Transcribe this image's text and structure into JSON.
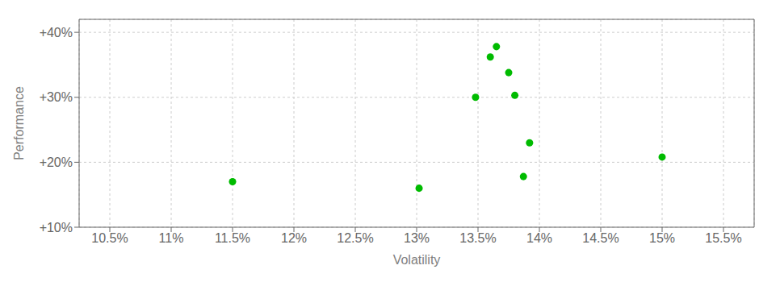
{
  "chart_data": {
    "type": "scatter",
    "xlabel": "Volatility",
    "ylabel": "Performance",
    "x": [
      11.5,
      13.02,
      13.48,
      13.6,
      13.65,
      13.75,
      13.8,
      13.92,
      13.87,
      15.0
    ],
    "values": [
      17.0,
      16.0,
      30.0,
      36.2,
      37.8,
      33.8,
      30.3,
      23.0,
      17.8,
      20.8
    ],
    "color": "#00bb00",
    "marker": "circle",
    "xlim": [
      10.25,
      15.75
    ],
    "ylim": [
      10.0,
      42.0
    ],
    "xticks": [
      {
        "value": 10.5,
        "label": "10.5%"
      },
      {
        "value": 11.0,
        "label": "11%"
      },
      {
        "value": 11.5,
        "label": "11.5%"
      },
      {
        "value": 12.0,
        "label": "12%"
      },
      {
        "value": 12.5,
        "label": "12.5%"
      },
      {
        "value": 13.0,
        "label": "13%"
      },
      {
        "value": 13.5,
        "label": "13.5%"
      },
      {
        "value": 14.0,
        "label": "14%"
      },
      {
        "value": 14.5,
        "label": "14.5%"
      },
      {
        "value": 15.0,
        "label": "15%"
      },
      {
        "value": 15.5,
        "label": "15.5%"
      }
    ],
    "yticks": [
      {
        "value": 10,
        "label": "+10%"
      },
      {
        "value": 20,
        "label": "+20%"
      },
      {
        "value": 30,
        "label": "+30%"
      },
      {
        "value": 40,
        "label": "+40%"
      }
    ],
    "grid": true
  }
}
